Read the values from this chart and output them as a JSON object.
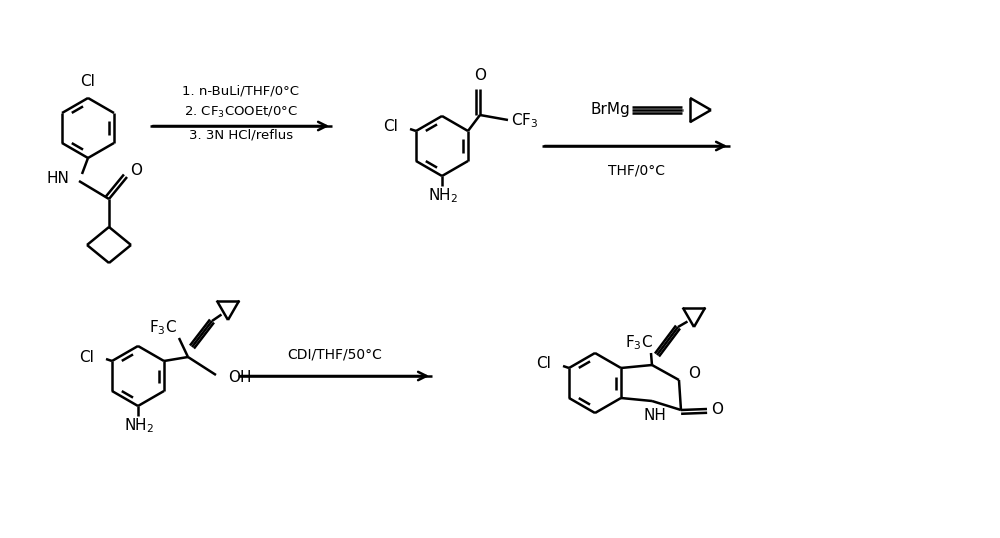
{
  "bg_color": "#ffffff",
  "lw": 1.8,
  "lc": "#000000",
  "figsize": [
    10.0,
    5.38
  ],
  "dpi": 100,
  "cond1_line1": "1. n-BuLi/THF/0°C",
  "cond1_line2": "2. CF₃COOEt/0°C",
  "cond1_line3": "3. 3N HCl/reflus",
  "cond2_top": "BrMg",
  "cond2_bot": "THF/0°C",
  "cond3": "CDI/THF/50°C"
}
